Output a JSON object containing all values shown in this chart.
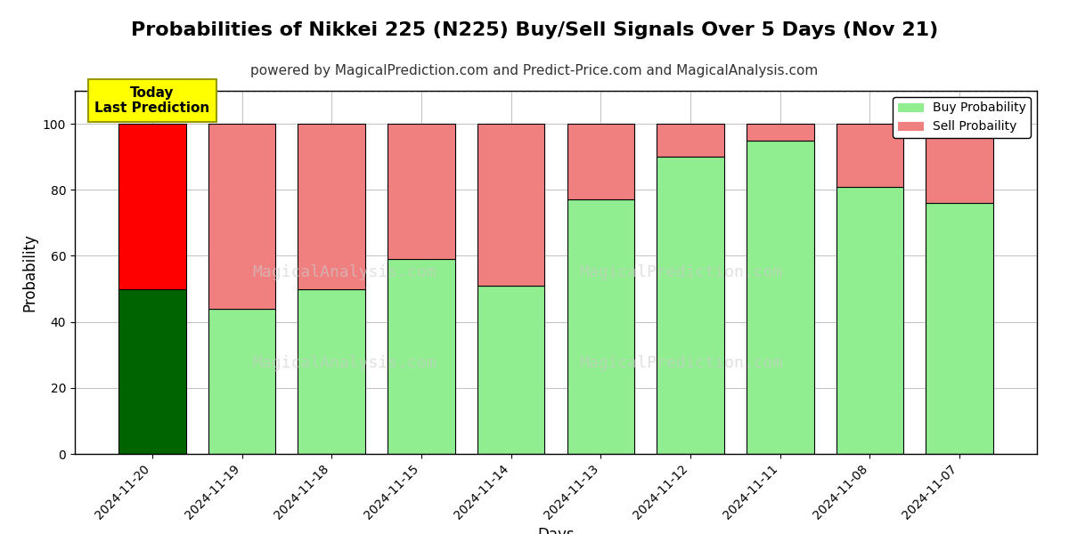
{
  "title": "Probabilities of Nikkei 225 (N225) Buy/Sell Signals Over 5 Days (Nov 21)",
  "subtitle": "powered by MagicalPrediction.com and Predict-Price.com and MagicalAnalysis.com",
  "xlabel": "Days",
  "ylabel": "Probability",
  "categories": [
    "2024-11-20",
    "2024-11-19",
    "2024-11-18",
    "2024-11-15",
    "2024-11-14",
    "2024-11-13",
    "2024-11-12",
    "2024-11-11",
    "2024-11-08",
    "2024-11-07"
  ],
  "buy_values": [
    50,
    44,
    50,
    59,
    51,
    77,
    90,
    95,
    81,
    76
  ],
  "sell_values": [
    50,
    56,
    50,
    41,
    49,
    23,
    10,
    5,
    19,
    24
  ],
  "buy_colors": [
    "#006400",
    "#90EE90",
    "#90EE90",
    "#90EE90",
    "#90EE90",
    "#90EE90",
    "#90EE90",
    "#90EE90",
    "#90EE90",
    "#90EE90"
  ],
  "sell_colors": [
    "#FF0000",
    "#F08080",
    "#F08080",
    "#F08080",
    "#F08080",
    "#F08080",
    "#F08080",
    "#F08080",
    "#F08080",
    "#F08080"
  ],
  "ylim": [
    0,
    110
  ],
  "yticks": [
    0,
    20,
    40,
    60,
    80,
    100
  ],
  "dashed_line_y": 110,
  "annotation_text": "Today\nLast Prediction",
  "annotation_bg": "#FFFF00",
  "legend_buy_color": "#90EE90",
  "legend_sell_color": "#F08080",
  "legend_buy_label": "Buy Probability",
  "legend_sell_label": "Sell Probaility",
  "title_fontsize": 16,
  "subtitle_fontsize": 11,
  "bar_edgecolor": "#000000",
  "bar_linewidth": 0.8,
  "grid_color": "#AAAAAA",
  "background_color": "#FFFFFF"
}
